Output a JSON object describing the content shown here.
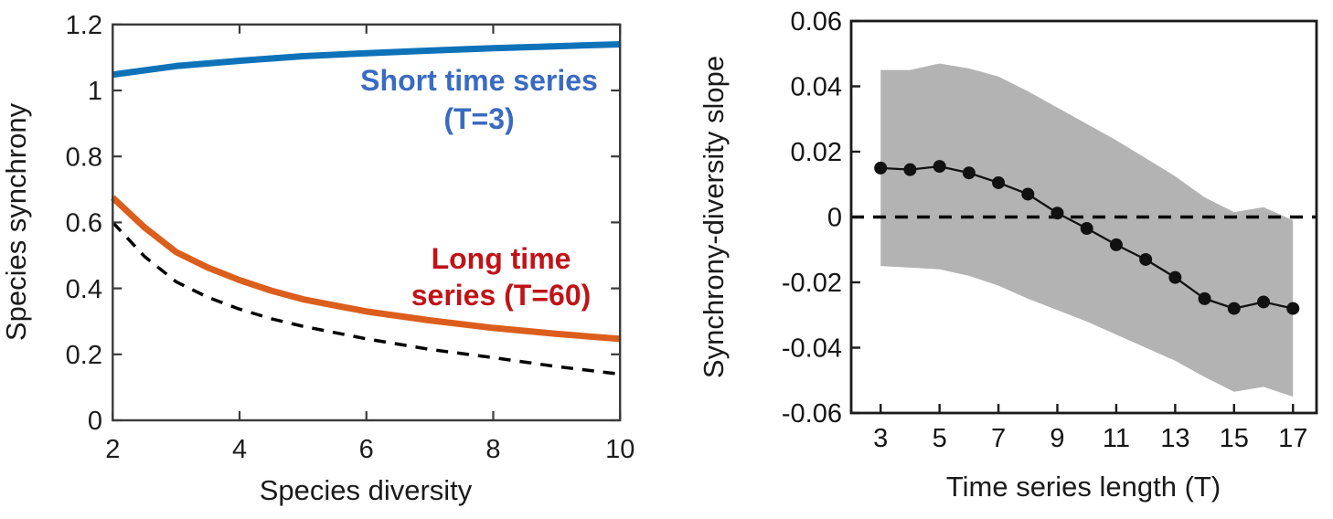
{
  "figure": {
    "background": "#ffffff",
    "panel_count": 2
  },
  "left_chart": {
    "xlabel": "Species diversity",
    "ylabel": "Species synchrony",
    "x_tick_labels": [
      "2",
      "4",
      "6",
      "8",
      "10"
    ],
    "y_tick_labels": [
      "0",
      "0.2",
      "0.4",
      "0.6",
      "0.8",
      "1",
      "1.2"
    ],
    "annotation_short_line1": "Short time series",
    "annotation_short_line2": "(T=3)",
    "annotation_long_line1": "Long time",
    "annotation_long_line2": "series (T=60)"
  },
  "right_chart": {
    "xlabel": "Time series length (T)",
    "ylabel": "Synchrony-diversity slope",
    "x_tick_labels": [
      "3",
      "5",
      "7",
      "9",
      "11",
      "13",
      "15",
      "17"
    ],
    "y_tick_labels": [
      "0.06",
      "0.04",
      "0.02",
      "0",
      "-0.02",
      "-0.04",
      "-0.06"
    ]
  },
  "colors": {
    "short_series_line": "#0e72b8",
    "long_series_line": "#dc5e1d",
    "dashed_reference": "#000000",
    "short_label_text": "#3a6bc2",
    "long_label_text": "#c01318",
    "confidence_band": "#b3b3b3",
    "slope_series": "#111111",
    "axis_text": "#1a1a1a"
  },
  "chart_data": [
    {
      "type": "line",
      "panel": "left",
      "title": "",
      "xlabel": "Species diversity",
      "ylabel": "Species synchrony",
      "xlim": [
        2,
        10
      ],
      "ylim": [
        0,
        1.2
      ],
      "x_ticks": [
        2,
        4,
        6,
        8,
        10
      ],
      "y_ticks": [
        0,
        0.2,
        0.4,
        0.6,
        0.8,
        1,
        1.2
      ],
      "grid": false,
      "legend_position": "inline-text-annotations",
      "series": [
        {
          "name": "Short time series (T=3)",
          "slug": "short-series-line",
          "style": "solid",
          "color": "#0e72b8",
          "width": 7,
          "x": [
            2,
            3,
            4,
            5,
            6,
            7,
            8,
            9,
            10
          ],
          "y": [
            1.048,
            1.074,
            1.09,
            1.104,
            1.113,
            1.121,
            1.128,
            1.134,
            1.14
          ]
        },
        {
          "name": "Long time series (T=60)",
          "slug": "long-series-line",
          "style": "solid",
          "color": "#dc5e1d",
          "width": 7,
          "x": [
            2,
            2.5,
            3,
            3.5,
            4,
            4.5,
            5,
            6,
            7,
            8,
            9,
            10
          ],
          "y": [
            0.675,
            0.585,
            0.51,
            0.463,
            0.425,
            0.393,
            0.367,
            0.33,
            0.303,
            0.28,
            0.262,
            0.247
          ]
        },
        {
          "name": "Dashed reference (unlabeled)",
          "slug": "dashed-reference-line",
          "style": "dashed",
          "color": "#000000",
          "width": 3.5,
          "x": [
            2,
            2.5,
            3,
            3.5,
            4,
            4.5,
            5,
            6,
            7,
            8,
            9,
            10
          ],
          "y": [
            0.6,
            0.497,
            0.42,
            0.373,
            0.337,
            0.308,
            0.285,
            0.247,
            0.215,
            0.19,
            0.163,
            0.14
          ]
        }
      ]
    },
    {
      "type": "line",
      "panel": "right",
      "title": "",
      "xlabel": "Time series length (T)",
      "ylabel": "Synchrony-diversity slope",
      "xlim": [
        2,
        17.8
      ],
      "ylim": [
        -0.06,
        0.06
      ],
      "x_ticks": [
        3,
        5,
        7,
        9,
        11,
        13,
        15,
        17
      ],
      "y_ticks": [
        0.06,
        0.04,
        0.02,
        0,
        -0.02,
        -0.04,
        -0.06
      ],
      "grid": false,
      "x": [
        3,
        4,
        5,
        6,
        7,
        8,
        9,
        10,
        11,
        12,
        13,
        14,
        15,
        16,
        17
      ],
      "series": [
        {
          "name": "Mean synchrony-diversity slope",
          "slug": "slope-series-line",
          "style": "solid",
          "color": "#111111",
          "width": 2.3,
          "marker": "circle",
          "marker_radius": 7,
          "y": [
            0.015,
            0.0145,
            0.0155,
            0.0135,
            0.0105,
            0.007,
            0.0012,
            -0.0035,
            -0.0085,
            -0.013,
            -0.0185,
            -0.025,
            -0.028,
            -0.026,
            -0.028
          ]
        }
      ],
      "band": {
        "name": "confidence-band",
        "color": "#b3b3b3",
        "upper": [
          0.045,
          0.045,
          0.047,
          0.0455,
          0.043,
          0.0385,
          0.0335,
          0.0285,
          0.0235,
          0.018,
          0.0125,
          0.006,
          0.0015,
          0.003,
          -0.001
        ],
        "lower": [
          -0.015,
          -0.0155,
          -0.016,
          -0.018,
          -0.021,
          -0.025,
          -0.0285,
          -0.032,
          -0.036,
          -0.04,
          -0.044,
          -0.049,
          -0.0535,
          -0.052,
          -0.055
        ]
      },
      "reference_line": {
        "y": 0,
        "style": "dashed",
        "color": "#000000"
      }
    }
  ]
}
